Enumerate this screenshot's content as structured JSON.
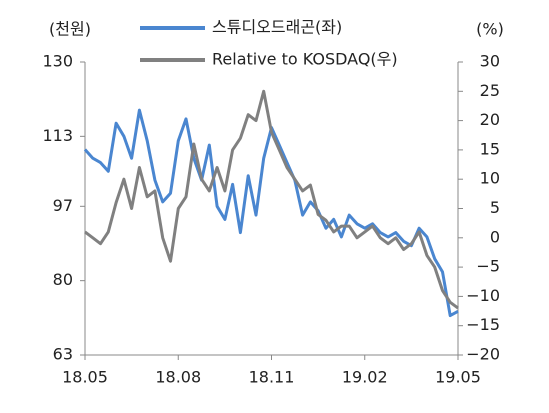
{
  "chart_data": {
    "type": "line",
    "y_label": "(천원)",
    "y2_label": "(%)",
    "categories": [
      "18.05",
      null,
      null,
      null,
      null,
      null,
      null,
      null,
      null,
      null,
      null,
      null,
      "18.08",
      null,
      null,
      null,
      null,
      null,
      null,
      null,
      null,
      null,
      null,
      null,
      "18.11",
      null,
      null,
      null,
      null,
      null,
      null,
      null,
      null,
      null,
      null,
      null,
      "19.02",
      null,
      null,
      null,
      null,
      null,
      null,
      null,
      null,
      null,
      null,
      null,
      "19.05"
    ],
    "series": [
      {
        "name": "스튜디오드래곤(좌)",
        "color": "#4a86d0",
        "values": [
          110,
          108,
          107,
          105,
          116,
          113,
          108,
          119,
          112,
          103,
          98,
          100,
          112,
          117,
          108,
          103,
          111,
          97,
          94,
          102,
          91,
          104,
          95,
          108,
          115,
          111,
          107,
          103,
          95,
          98,
          96,
          92,
          94,
          90,
          95,
          93,
          92,
          93,
          91,
          90,
          91,
          89,
          88,
          92,
          90,
          85,
          82,
          72,
          73
        ]
      },
      {
        "name": "Relative to KOSDAQ(우)",
        "color": "#808080",
        "axis": "y2",
        "values": [
          1,
          0,
          -1,
          1,
          6,
          10,
          5,
          12,
          7,
          8,
          0,
          -4,
          5,
          7,
          16,
          10,
          8,
          12,
          8,
          15,
          17,
          21,
          20,
          25,
          18,
          15,
          12,
          10,
          8,
          9,
          4,
          3,
          1,
          2,
          2,
          0,
          1,
          2,
          0,
          -1,
          0,
          -2,
          -1,
          1,
          -3,
          -5,
          -9,
          -11,
          -12
        ]
      }
    ],
    "ylim": [
      63,
      130
    ],
    "yticks": [
      63,
      80,
      97,
      113,
      130
    ],
    "y2lim": [
      -20,
      30
    ],
    "y2ticks": [
      {
        "value": -20,
        "label": "−20"
      },
      {
        "value": -15,
        "label": "−15"
      },
      {
        "value": -10,
        "label": "−10"
      },
      {
        "value": -5,
        "label": "−5"
      },
      0,
      5,
      10,
      15,
      20,
      25,
      30
    ]
  }
}
